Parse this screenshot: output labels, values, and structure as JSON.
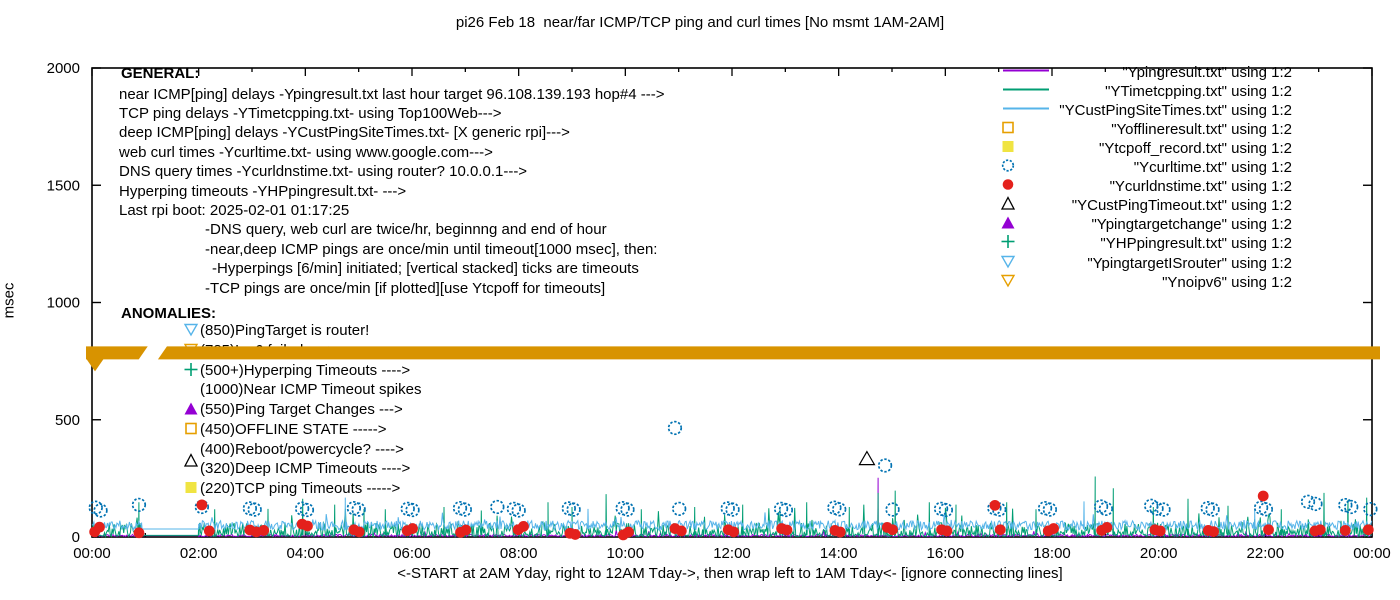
{
  "title": "pi26 Feb 18  near/far ICMP/TCP ping and curl times [No msmt 1AM-2AM]",
  "axes": {
    "ylabel": "msec",
    "y_ticks": [
      0,
      500,
      1000,
      1500,
      2000
    ],
    "x_tick_labels": [
      "00:00",
      "02:00",
      "04:00",
      "06:00",
      "08:00",
      "10:00",
      "12:00",
      "14:00",
      "16:00",
      "18:00",
      "20:00",
      "22:00",
      "00:00"
    ],
    "x_caption": "<-START at 2AM Yday, right to 12AM Tday->, then wrap left to 1AM Tday<- [ignore connecting lines]"
  },
  "general": {
    "heading": "GENERAL:",
    "lines": [
      {
        "indent": 119,
        "text": "near ICMP[ping] delays -Ypingresult.txt last hour target 96.108.139.193 hop#4 --->"
      },
      {
        "indent": 119,
        "text": "TCP ping delays -YTimetcpping.txt- using Top100Web--->"
      },
      {
        "indent": 119,
        "text": "deep ICMP[ping] delays -YCustPingSiteTimes.txt- [X generic rpi]--->"
      },
      {
        "indent": 119,
        "text": "web curl times -Ycurltime.txt- using www.google.com--->"
      },
      {
        "indent": 119,
        "text": "DNS query times -Ycurldnstime.txt- using router? 10.0.0.1--->"
      },
      {
        "indent": 119,
        "text": "Hyperping timeouts -YHPpingresult.txt- --->"
      },
      {
        "indent": 119,
        "text": "Last rpi boot: 2025-02-01 01:17:25"
      },
      {
        "indent": 205,
        "text": "-DNS query, web curl are twice/hr, beginnng and end of hour"
      },
      {
        "indent": 205,
        "text": "-near,deep ICMP pings are once/min until timeout[1000 msec], then:"
      },
      {
        "indent": 212,
        "text": "-Hyperpings [6/min] initiated; [vertical stacked] ticks are timeouts"
      },
      {
        "indent": 205,
        "text": "-TCP pings are once/min [if plotted][use Ytcpoff for timeouts]"
      }
    ]
  },
  "anomalies": {
    "heading": "ANOMALIES:",
    "rows": [
      {
        "icon": "skyblue-down-triangle-icon",
        "color": "#56b4e9",
        "label": "(850)PingTarget is router!"
      },
      {
        "icon": "orange-down-triangle-icon",
        "color": "#e69f00",
        "label": "(785)Ipv6 failed ---->"
      },
      {
        "icon": "teal-plus-icon",
        "color": "#009e73",
        "label": "(500+)Hyperping Timeouts ---->"
      },
      {
        "icon": null,
        "color": "#000000",
        "label": "(1000)Near ICMP Timeout spikes"
      },
      {
        "icon": "purple-triangle-icon",
        "color": "#9400d3",
        "label": "(550)Ping Target Changes --->"
      },
      {
        "icon": "orange-square-icon",
        "color": "#e69f00",
        "label": "(450)OFFLINE STATE ----->"
      },
      {
        "icon": null,
        "color": "#000000",
        "label": "(400)Reboot/powercycle? ---->"
      },
      {
        "icon": "black-triangle-icon",
        "color": "#000000",
        "label": "(320)Deep ICMP Timeouts ---->"
      },
      {
        "icon": "yellow-square-icon",
        "color": "#f0e442",
        "label": "(220)TCP ping Timeouts ----->"
      }
    ]
  },
  "legend": {
    "rows": [
      {
        "label": "\"Ypingresult.txt\" using 1:2",
        "sample": "line",
        "color": "#9400d3"
      },
      {
        "label": "\"YTimetcpping.txt\" using 1:2",
        "sample": "line",
        "color": "#009e73"
      },
      {
        "label": "\"YCustPingSiteTimes.txt\" using 1:2",
        "sample": "line",
        "color": "#56b4e9"
      },
      {
        "label": "\"Yofflineresult.txt\" using 1:2",
        "sample": "square-open",
        "color": "#e69f00"
      },
      {
        "label": "\"Ytcpoff_record.txt\" using 1:2",
        "sample": "square-filled",
        "color": "#f0e442"
      },
      {
        "label": "\"Ycurltime.txt\" using 1:2",
        "sample": "circle-open",
        "color": "#0072b2"
      },
      {
        "label": "\"Ycurldnstime.txt\" using 1:2",
        "sample": "circle-filled",
        "color": "#e4211c"
      },
      {
        "label": "\"YCustPingTimeout.txt\" using 1:2",
        "sample": "triangle-open",
        "color": "#000000"
      },
      {
        "label": "\"Ypingtargetchange\" using 1:2",
        "sample": "triangle-filled",
        "color": "#9400d3"
      },
      {
        "label": "\"YHPpingresult.txt\" using 1:2",
        "sample": "plus",
        "color": "#009e73"
      },
      {
        "label": "\"YpingtargetISrouter\" using 1:2",
        "sample": "triangle-down-open",
        "color": "#56b4e9"
      },
      {
        "label": "\"Ynoipv6\" using 1:2",
        "sample": "triangle-down-open",
        "color": "#e69f00"
      }
    ]
  },
  "chart_data": {
    "type": "line",
    "x_range_hours": [
      0,
      24
    ],
    "ylim": [
      0,
      2000
    ],
    "no_measurement_gap_hours": [
      0.93,
      2.0
    ],
    "band": {
      "name": "Ynoipv6 marker band",
      "y_msec": 785,
      "color": "#d89300",
      "gap_hours": [
        0.97,
        1.33
      ]
    },
    "series": [
      {
        "name": "Ypingresult.txt",
        "kind": "noisy-line",
        "color": "#9400d3",
        "seed": 23,
        "base": 2,
        "amp": 9,
        "skew": 1.5,
        "tall_chance": 0.015,
        "tall_amp": 28,
        "spikes": [
          [
            0.93,
            8
          ],
          [
            2.0,
            4
          ],
          [
            14.74,
            253
          ]
        ]
      },
      {
        "name": "YTimetcpping.txt",
        "kind": "noisy-line",
        "color": "#009e73",
        "seed": 7,
        "base": 3,
        "amp": 58,
        "skew": 2.2,
        "tall_chance": 0.05,
        "tall_amp": 95,
        "spikes": [
          [
            0.88,
            148
          ],
          [
            0.93,
            51
          ],
          [
            2.0,
            13
          ],
          [
            2.3,
            118
          ],
          [
            3.3,
            120
          ],
          [
            3.95,
            163
          ],
          [
            4.55,
            138
          ],
          [
            5.1,
            120
          ],
          [
            5.5,
            118
          ],
          [
            6.6,
            128
          ],
          [
            7.3,
            113
          ],
          [
            8.55,
            148
          ],
          [
            9.0,
            128
          ],
          [
            9.64,
            183
          ],
          [
            10.3,
            118
          ],
          [
            11.3,
            128
          ],
          [
            12.2,
            138
          ],
          [
            12.9,
            118
          ],
          [
            13.4,
            148
          ],
          [
            14.2,
            128
          ],
          [
            14.74,
            188
          ],
          [
            15.06,
            198
          ],
          [
            15.7,
            148
          ],
          [
            16.2,
            138
          ],
          [
            17.15,
            148
          ],
          [
            17.7,
            118
          ],
          [
            18.81,
            258
          ],
          [
            19.15,
            208
          ],
          [
            19.9,
            128
          ],
          [
            20.55,
            163
          ],
          [
            21.3,
            133
          ],
          [
            22.3,
            118
          ],
          [
            23.1,
            188
          ],
          [
            23.55,
            158
          ],
          [
            23.9,
            168
          ]
        ]
      },
      {
        "name": "YCustPingSiteTimes.txt",
        "kind": "noisy-line",
        "color": "#56b4e9",
        "seed": 11,
        "base": 30,
        "amp": 40,
        "skew": 1.0,
        "tall_chance": 0.02,
        "tall_amp": 55,
        "spikes": [
          [
            0.93,
            62
          ],
          [
            2.0,
            56
          ],
          [
            4.75,
            168
          ],
          [
            9.3,
            120
          ],
          [
            18.6,
            152
          ],
          [
            21.8,
            120
          ]
        ]
      },
      {
        "name": "Ycurltime.txt",
        "kind": "scatter",
        "marker": "circle-open",
        "color": "#0072b2",
        "points": [
          [
            0.07,
            125
          ],
          [
            0.16,
            113
          ],
          [
            0.88,
            137
          ],
          [
            2.06,
            128
          ],
          [
            2.96,
            122
          ],
          [
            3.05,
            117
          ],
          [
            3.94,
            121
          ],
          [
            4.03,
            115
          ],
          [
            4.91,
            123
          ],
          [
            5.0,
            117
          ],
          [
            5.92,
            120
          ],
          [
            6.01,
            115
          ],
          [
            6.9,
            123
          ],
          [
            6.99,
            117
          ],
          [
            7.6,
            128
          ],
          [
            7.91,
            120
          ],
          [
            8.0,
            113
          ],
          [
            8.94,
            122
          ],
          [
            9.03,
            117
          ],
          [
            9.95,
            123
          ],
          [
            10.04,
            117
          ],
          [
            10.93,
            465
          ],
          [
            11.01,
            120
          ],
          [
            11.92,
            122
          ],
          [
            12.01,
            117
          ],
          [
            12.92,
            120
          ],
          [
            13.01,
            115
          ],
          [
            13.92,
            125
          ],
          [
            14.01,
            118
          ],
          [
            14.87,
            305
          ],
          [
            15.01,
            117
          ],
          [
            15.92,
            120
          ],
          [
            16.01,
            115
          ],
          [
            16.92,
            123
          ],
          [
            17.01,
            117
          ],
          [
            17.87,
            123
          ],
          [
            17.96,
            117
          ],
          [
            18.92,
            130
          ],
          [
            19.01,
            120
          ],
          [
            19.86,
            133
          ],
          [
            19.96,
            121
          ],
          [
            20.09,
            117
          ],
          [
            20.92,
            123
          ],
          [
            21.01,
            117
          ],
          [
            21.92,
            125
          ],
          [
            22.01,
            118
          ],
          [
            22.8,
            150
          ],
          [
            22.94,
            141
          ],
          [
            23.5,
            136
          ],
          [
            23.61,
            128
          ],
          [
            23.97,
            119
          ]
        ]
      },
      {
        "name": "Ycurldnstime.txt",
        "kind": "scatter",
        "marker": "circle-filled",
        "color": "#e4211c",
        "points": [
          [
            0.05,
            22
          ],
          [
            0.14,
            42
          ],
          [
            0.88,
            18
          ],
          [
            2.06,
            137
          ],
          [
            2.2,
            26
          ],
          [
            2.96,
            30
          ],
          [
            3.08,
            22
          ],
          [
            3.22,
            28
          ],
          [
            3.94,
            55
          ],
          [
            4.04,
            47
          ],
          [
            4.91,
            31
          ],
          [
            5.01,
            22
          ],
          [
            5.91,
            27
          ],
          [
            6.01,
            36
          ],
          [
            6.91,
            20
          ],
          [
            7.01,
            30
          ],
          [
            7.99,
            31
          ],
          [
            8.09,
            45
          ],
          [
            8.96,
            16
          ],
          [
            9.06,
            11
          ],
          [
            9.96,
            9
          ],
          [
            10.06,
            21
          ],
          [
            10.93,
            36
          ],
          [
            11.05,
            26
          ],
          [
            11.93,
            31
          ],
          [
            12.03,
            22
          ],
          [
            12.93,
            36
          ],
          [
            13.03,
            30
          ],
          [
            13.93,
            28
          ],
          [
            14.03,
            21
          ],
          [
            14.91,
            41
          ],
          [
            15.01,
            31
          ],
          [
            15.93,
            31
          ],
          [
            16.03,
            26
          ],
          [
            16.93,
            135
          ],
          [
            17.03,
            31
          ],
          [
            17.93,
            26
          ],
          [
            18.03,
            36
          ],
          [
            18.93,
            28
          ],
          [
            19.03,
            41
          ],
          [
            19.93,
            31
          ],
          [
            20.03,
            26
          ],
          [
            20.93,
            28
          ],
          [
            21.03,
            23
          ],
          [
            21.96,
            175
          ],
          [
            22.06,
            31
          ],
          [
            22.93,
            26
          ],
          [
            23.03,
            31
          ],
          [
            23.5,
            28
          ],
          [
            23.93,
            31
          ]
        ]
      },
      {
        "name": "YCustPingTimeout.txt",
        "kind": "scatter",
        "marker": "triangle-open",
        "color": "#000000",
        "points": [
          [
            14.53,
            330
          ]
        ]
      }
    ]
  }
}
